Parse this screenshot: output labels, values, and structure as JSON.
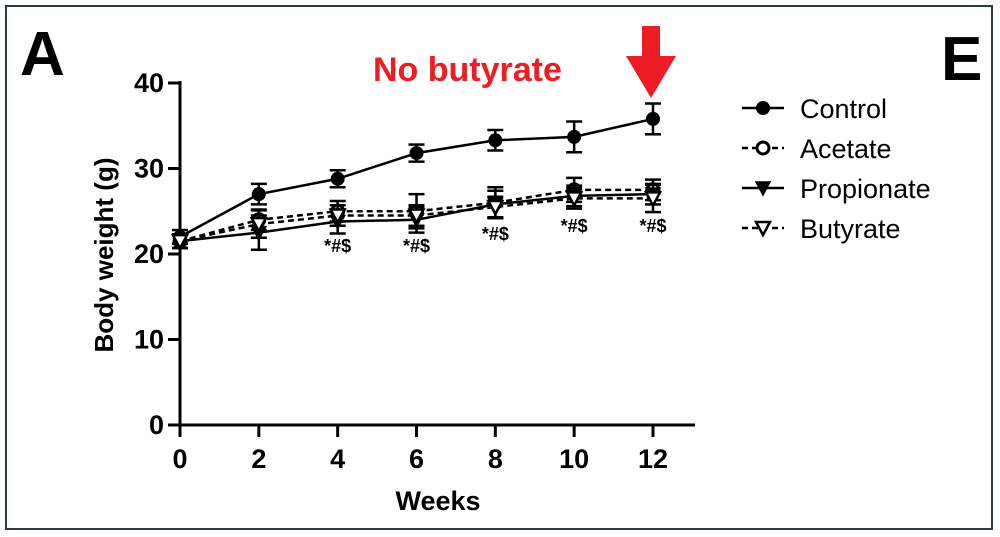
{
  "panel_label": "A",
  "edge_label": "E",
  "annotation": {
    "text": "No butyrate",
    "color": "#ee1c24"
  },
  "chart_data": {
    "type": "line",
    "xlabel": "Weeks",
    "ylabel": "Body weight (g)",
    "xlim": [
      0,
      12
    ],
    "ylim": [
      0,
      40
    ],
    "x": [
      0,
      2,
      4,
      6,
      8,
      10,
      12
    ],
    "xticks": [
      "0",
      "2",
      "4",
      "6",
      "8",
      "10",
      "12"
    ],
    "yticks": [
      "0",
      "10",
      "20",
      "30",
      "40"
    ],
    "grid": false,
    "legend_position": "right",
    "series": [
      {
        "name": "Control",
        "marker": "filled-circle",
        "dash": "solid",
        "values": [
          22,
          27,
          28.8,
          31.8,
          33.3,
          33.7,
          35.8
        ],
        "err": [
          0.8,
          1.2,
          1.0,
          1.0,
          1.2,
          1.8,
          1.8
        ]
      },
      {
        "name": "Acetate",
        "marker": "open-circle",
        "dash": "dashed",
        "values": [
          21.5,
          24,
          25,
          25,
          26,
          27.5,
          27.5
        ],
        "err": [
          0.8,
          1.2,
          1.2,
          2.0,
          1.8,
          1.4,
          1.2
        ]
      },
      {
        "name": "Propionate",
        "marker": "filled-triangle",
        "dash": "solid",
        "values": [
          21.5,
          22.5,
          23.8,
          24,
          25.8,
          26.8,
          27
        ],
        "err": [
          0.8,
          2.0,
          1.4,
          1.5,
          1.6,
          1.2,
          1.2
        ]
      },
      {
        "name": "Butyrate",
        "marker": "open-triangle",
        "dash": "dashed",
        "values": [
          21.5,
          23.5,
          24.5,
          24.5,
          25.5,
          26.5,
          26.5
        ],
        "err": [
          0.8,
          1.6,
          1.2,
          1.2,
          1.2,
          1.2,
          1.6
        ]
      }
    ],
    "significance": [
      {
        "x": 4,
        "text": "*#$"
      },
      {
        "x": 6,
        "text": "*#$"
      },
      {
        "x": 8,
        "text": "*#$"
      },
      {
        "x": 10,
        "text": "*#$"
      },
      {
        "x": 12,
        "text": "*#$"
      }
    ]
  }
}
